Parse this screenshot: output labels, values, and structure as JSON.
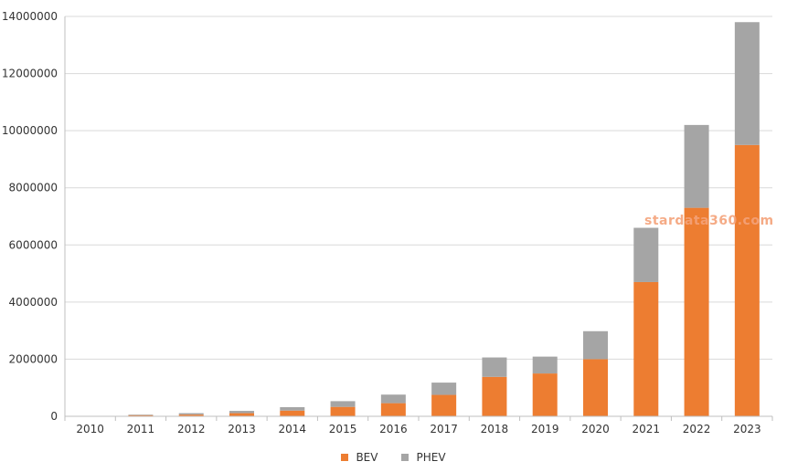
{
  "chart_data": {
    "type": "bar",
    "stacked": true,
    "categories": [
      "2010",
      "2011",
      "2012",
      "2013",
      "2014",
      "2015",
      "2016",
      "2017",
      "2018",
      "2019",
      "2020",
      "2021",
      "2022",
      "2023"
    ],
    "series": [
      {
        "name": "BEV",
        "color": "#ed7d31",
        "values": [
          10000,
          40000,
          60000,
          110000,
          200000,
          330000,
          460000,
          750000,
          1380000,
          1500000,
          2000000,
          4700000,
          7300000,
          9500000
        ]
      },
      {
        "name": "PHEV",
        "color": "#a5a5a5",
        "values": [
          5000,
          20000,
          50000,
          80000,
          120000,
          200000,
          300000,
          430000,
          680000,
          590000,
          980000,
          1900000,
          2900000,
          4300000
        ]
      }
    ],
    "ylim": [
      0,
      14000000
    ],
    "yticks": [
      0,
      2000000,
      4000000,
      6000000,
      8000000,
      10000000,
      12000000,
      14000000
    ],
    "ytick_labels": [
      "0",
      "2000000",
      "4000000",
      "6000000",
      "8000000",
      "10000000",
      "12000000",
      "14000000"
    ],
    "grid": true,
    "legend_position": "bottom-center"
  },
  "watermark": "stardata360.com"
}
